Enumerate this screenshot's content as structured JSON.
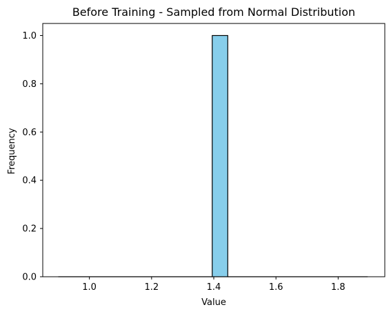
{
  "chart_data": {
    "type": "bar",
    "title": "Before Training - Sampled from Normal Distribution",
    "xlabel": "Value",
    "ylabel": "Frequency",
    "xlim": [
      0.85,
      1.95
    ],
    "ylim": [
      0.0,
      1.05
    ],
    "xticks": [
      1.0,
      1.2,
      1.4,
      1.6,
      1.8
    ],
    "xtick_labels": [
      "1.0",
      "1.2",
      "1.4",
      "1.6",
      "1.8"
    ],
    "yticks": [
      0.0,
      0.2,
      0.4,
      0.6,
      0.8,
      1.0
    ],
    "ytick_labels": [
      "0.0",
      "0.2",
      "0.4",
      "0.6",
      "0.8",
      "1.0"
    ],
    "bins": [
      [
        0.9,
        0.95,
        0
      ],
      [
        0.95,
        1.0,
        0
      ],
      [
        1.0,
        1.05,
        0
      ],
      [
        1.05,
        1.1,
        0
      ],
      [
        1.1,
        1.15,
        0
      ],
      [
        1.15,
        1.2,
        0
      ],
      [
        1.2,
        1.25,
        0
      ],
      [
        1.25,
        1.3,
        0
      ],
      [
        1.3,
        1.35,
        0
      ],
      [
        1.35,
        1.395,
        0
      ],
      [
        1.395,
        1.445,
        1
      ],
      [
        1.445,
        1.5,
        0
      ],
      [
        1.5,
        1.55,
        0
      ],
      [
        1.55,
        1.6,
        0
      ],
      [
        1.6,
        1.65,
        0
      ],
      [
        1.65,
        1.7,
        0
      ],
      [
        1.7,
        1.75,
        0
      ],
      [
        1.75,
        1.8,
        0
      ],
      [
        1.8,
        1.85,
        0
      ],
      [
        1.85,
        1.895,
        0
      ]
    ],
    "bar_color": "#87ceeb",
    "edge_color": "#000000",
    "grid": false,
    "legend": "none"
  }
}
